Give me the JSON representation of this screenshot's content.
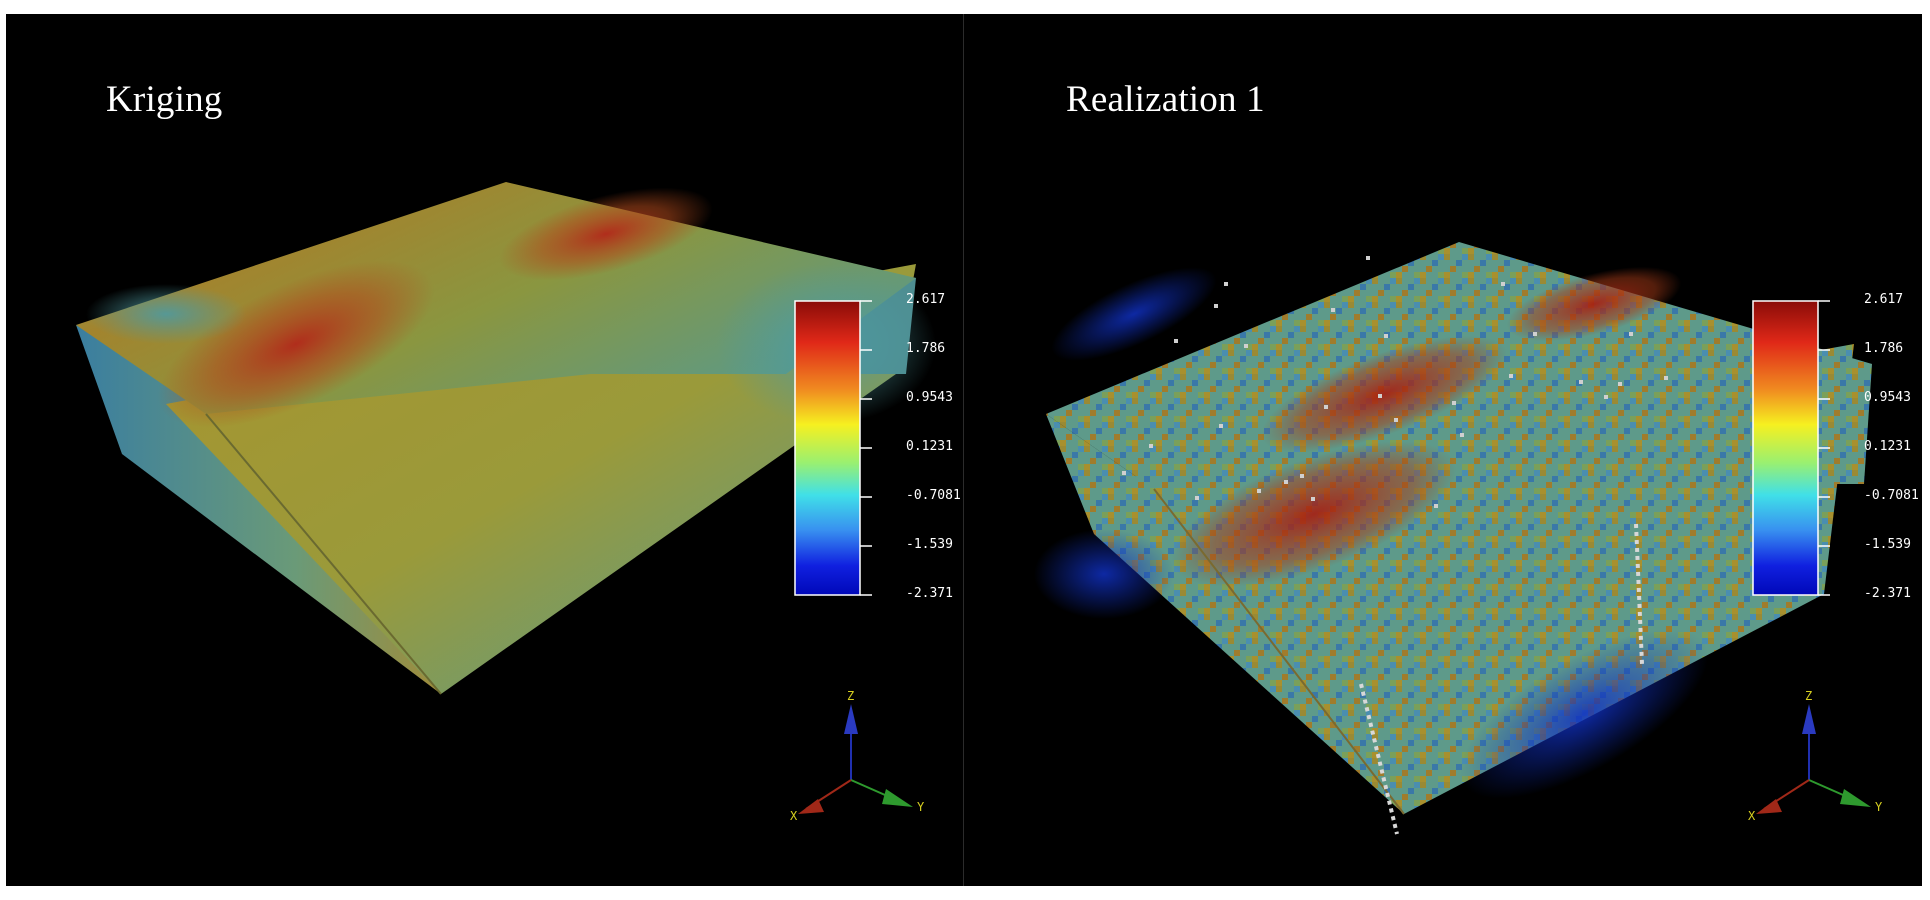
{
  "panels": [
    {
      "title": "Kriging",
      "colorbar": {
        "ticks": [
          "2.617",
          "1.786",
          "0.9543",
          "0.1231",
          "-0.7081",
          "-1.539",
          "-2.371"
        ]
      },
      "axes": {
        "x": "X",
        "y": "Y",
        "z": "Z"
      }
    },
    {
      "title": "Realization 1",
      "colorbar": {
        "ticks": [
          "2.617",
          "1.786",
          "0.9543",
          "0.1231",
          "-0.7081",
          "-1.539",
          "-2.371"
        ]
      },
      "axes": {
        "x": "X",
        "y": "Y",
        "z": "Z"
      }
    }
  ],
  "colors": {
    "background": "#000000",
    "high": "#b01e10",
    "mid": "#f0f020",
    "low": "#0010d0",
    "x_axis": "#a02818",
    "y_axis": "#2e9a2e",
    "z_axis": "#2030b0",
    "axis_label": "#d8d020"
  }
}
